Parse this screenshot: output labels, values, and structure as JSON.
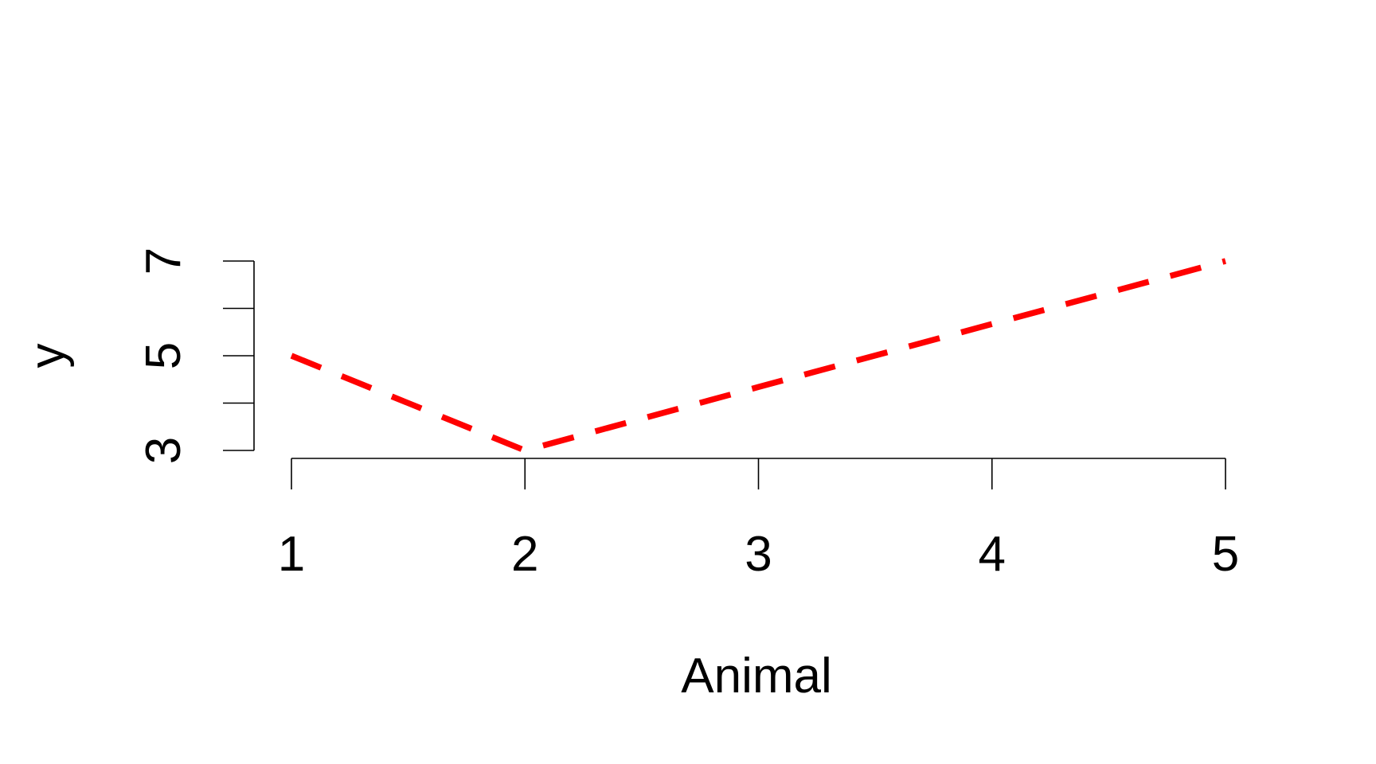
{
  "chart_data": {
    "type": "line",
    "title": "",
    "xlabel": "Animal",
    "ylabel": "y",
    "x": [
      1,
      2,
      3,
      4,
      5
    ],
    "series": [
      {
        "name": "y",
        "values": [
          5,
          3,
          4.34,
          5.67,
          7
        ],
        "color": "#ff0000",
        "linestyle": "dashed"
      }
    ],
    "xlim": [
      1,
      5
    ],
    "ylim": [
      3,
      7
    ],
    "x_ticks": [
      1,
      2,
      3,
      4,
      5
    ],
    "x_tick_labels": [
      "1",
      "2",
      "3",
      "4",
      "5"
    ],
    "y_ticks": [
      3,
      4,
      5,
      6,
      7
    ],
    "y_tick_labels": [
      "3",
      "",
      "5",
      "",
      "7"
    ],
    "grid": false,
    "legend": "none"
  }
}
